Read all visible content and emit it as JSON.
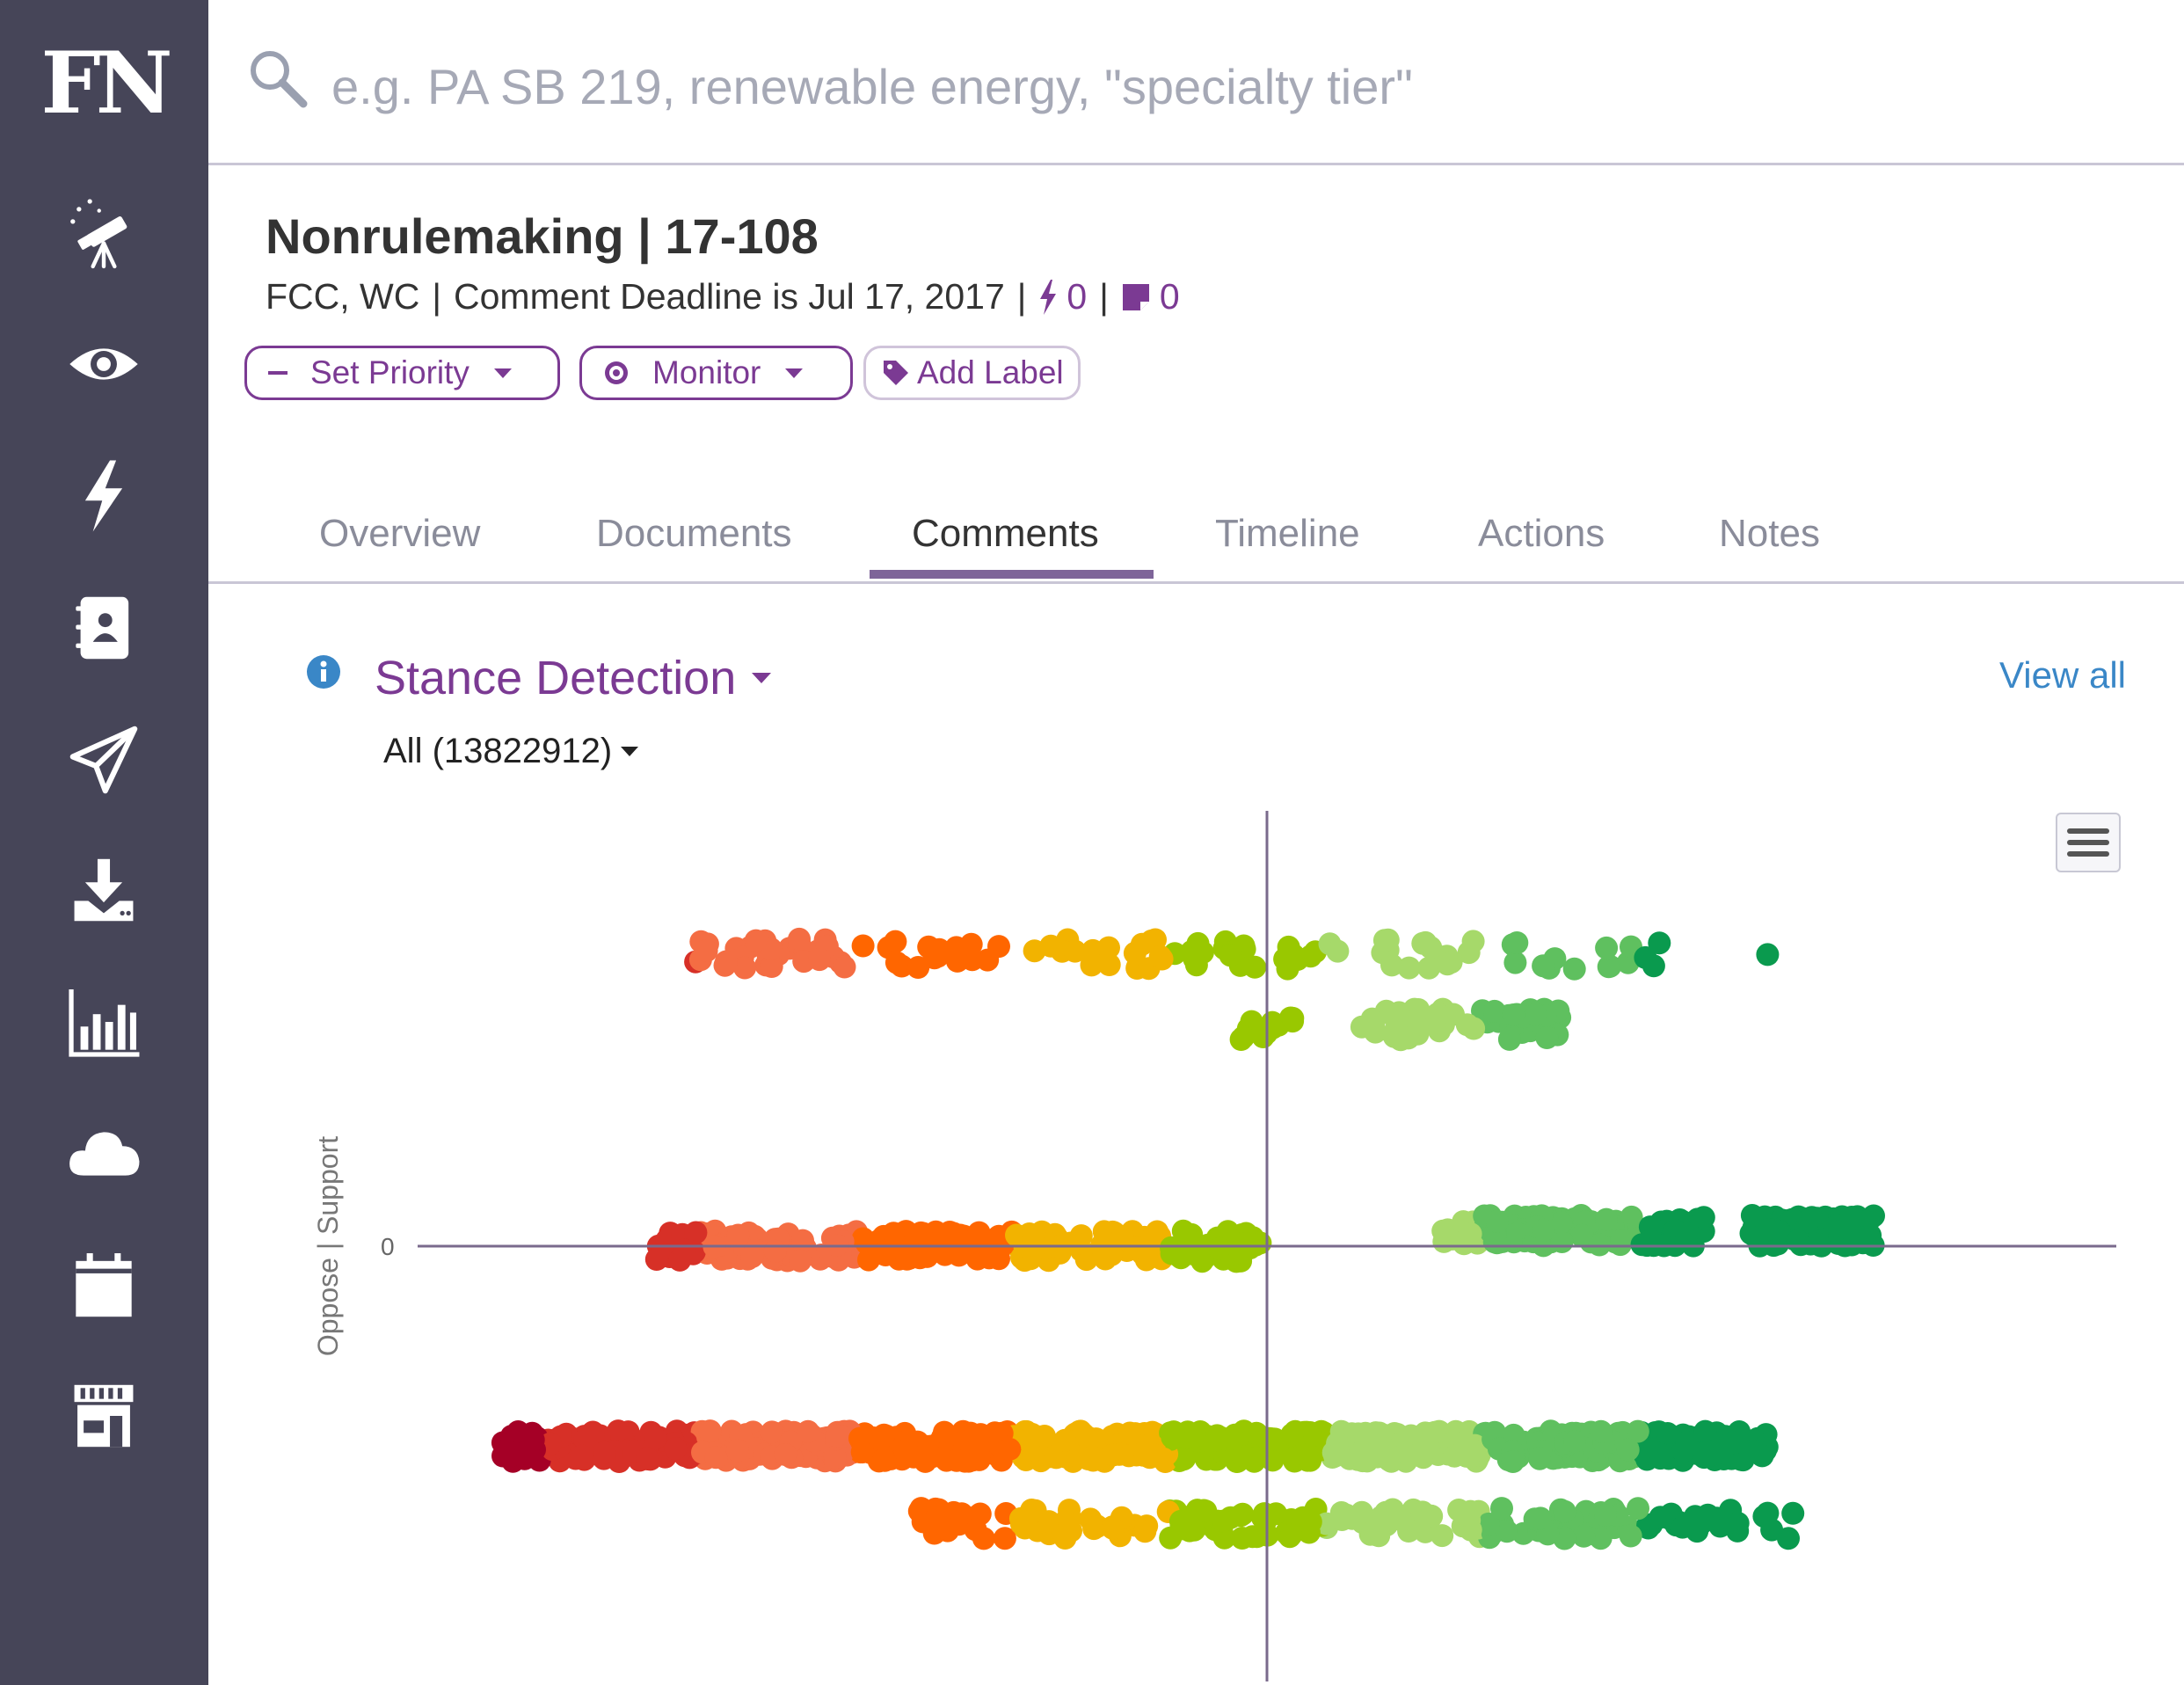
{
  "sidebar": {
    "logo": "FN",
    "items": [
      {
        "icon": "telescope-icon"
      },
      {
        "icon": "eye-icon"
      },
      {
        "icon": "lightning-icon"
      },
      {
        "icon": "contacts-book-icon"
      },
      {
        "icon": "paper-plane-icon"
      },
      {
        "icon": "download-icon"
      },
      {
        "icon": "bar-chart-icon"
      },
      {
        "icon": "cloud-icon"
      },
      {
        "icon": "calendar-icon"
      },
      {
        "icon": "storefront-icon"
      }
    ]
  },
  "search": {
    "placeholder": "e.g. PA SB 219, renewable energy, \"specialty tier\""
  },
  "header": {
    "title": "Nonrulemaking | 17-108",
    "agencies": "FCC, WC",
    "deadline": "Comment Deadline is Jul 17, 2017",
    "alerts_count": "0",
    "notes_count": "0"
  },
  "actions": {
    "set_priority": "Set Priority",
    "monitor": "Monitor",
    "add_label": "Add Label"
  },
  "tabs": [
    "Overview",
    "Documents",
    "Comments",
    "Timeline",
    "Actions",
    "Notes"
  ],
  "active_tab": "Comments",
  "section": {
    "title": "Stance Detection",
    "view_all": "View all",
    "filter": "All (13822912)"
  },
  "colors": {
    "sidebar": "#464558",
    "accent": "#7b3a93",
    "link": "#3a87c7",
    "stance_scale": [
      "#a50026",
      "#d73027",
      "#f46d43",
      "#ff6600",
      "#f2b300",
      "#99c800",
      "#a6d96a",
      "#5fc05f",
      "#0a9a4e"
    ]
  },
  "chart_data": {
    "type": "scatter",
    "ylabel": "Oppose | Support",
    "y_ticks": [
      "0"
    ],
    "x_axis_line": true,
    "clusters": [
      {
        "x": -0.1,
        "y": 0.95,
        "spread_x": 0.55,
        "count": 120,
        "color_from_x": true
      },
      {
        "x": 0.55,
        "y": 0.95,
        "spread_x": 0.02,
        "count": 1,
        "color_from_x": true
      },
      {
        "x": 0.0,
        "y": 0.72,
        "spread_x": 0.03,
        "count": 12,
        "color_from_x": true
      },
      {
        "x": 0.22,
        "y": 0.72,
        "spread_x": 0.12,
        "count": 60,
        "color_from_x": true
      },
      {
        "x": -0.35,
        "y": 0.0,
        "spread_x": 0.35,
        "count": 260,
        "color_from_x": true
      },
      {
        "x": 0.35,
        "y": 0.05,
        "spread_x": 0.15,
        "count": 150,
        "color_from_x": true
      },
      {
        "x": 0.62,
        "y": 0.05,
        "spread_x": 0.07,
        "count": 120,
        "color_from_x": true
      },
      {
        "x": -0.15,
        "y": -0.65,
        "spread_x": 0.72,
        "count": 800,
        "color_from_x": true
      },
      {
        "x": 0.1,
        "y": -0.9,
        "spread_x": 0.5,
        "count": 220,
        "color_from_x": true
      }
    ]
  }
}
